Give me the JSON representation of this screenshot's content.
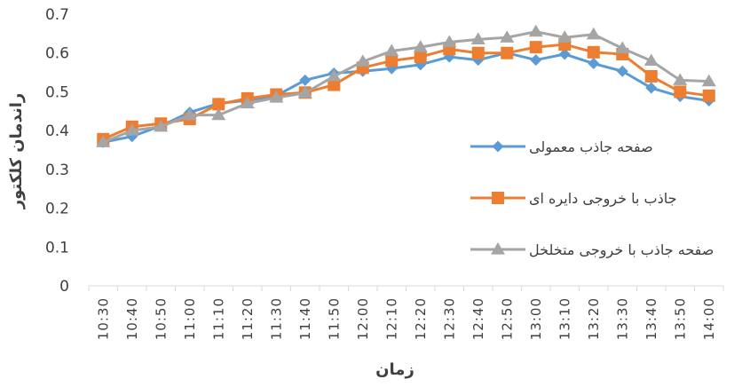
{
  "chart_data": {
    "type": "line",
    "xlabel": "زمان",
    "ylabel": "راندمان کلکتور",
    "ylim": [
      0,
      0.7
    ],
    "yticks": [
      "0",
      "0.1",
      "0.2",
      "0.3",
      "0.4",
      "0.5",
      "0.6",
      "0.7"
    ],
    "grid": false,
    "legend_position": "right",
    "x": [
      "10:30",
      "10:40",
      "10:50",
      "11:00",
      "11:10",
      "11:20",
      "11:30",
      "11:40",
      "11:50",
      "12:00",
      "12:10",
      "12:20",
      "12:30",
      "12:40",
      "12:50",
      "13:00",
      "13:10",
      "13:20",
      "13:30",
      "13:40",
      "13:50",
      "14:00"
    ],
    "series": [
      {
        "name": "صفحه جاذب معمولی",
        "color": "#5B9BD5",
        "marker": "diamond",
        "values": [
          0.37,
          0.385,
          0.412,
          0.447,
          0.47,
          0.478,
          0.49,
          0.53,
          0.548,
          0.553,
          0.56,
          0.57,
          0.59,
          0.582,
          0.6,
          0.582,
          0.597,
          0.573,
          0.553,
          0.51,
          0.488,
          0.477
        ]
      },
      {
        "name": "جاذب با خروجی دایره ای",
        "color": "#ED7D31",
        "marker": "square",
        "values": [
          0.378,
          0.41,
          0.418,
          0.43,
          0.468,
          0.483,
          0.493,
          0.498,
          0.518,
          0.562,
          0.58,
          0.59,
          0.61,
          0.6,
          0.6,
          0.615,
          0.622,
          0.602,
          0.597,
          0.54,
          0.5,
          0.49
        ]
      },
      {
        "name": "صفحه جاذب با خروجی متخلخل",
        "color": "#A5A5A5",
        "marker": "triangle",
        "values": [
          0.37,
          0.4,
          0.41,
          0.44,
          0.44,
          0.47,
          0.485,
          0.497,
          0.54,
          0.578,
          0.605,
          0.615,
          0.628,
          0.635,
          0.64,
          0.655,
          0.64,
          0.648,
          0.612,
          0.58,
          0.53,
          0.527
        ]
      }
    ]
  }
}
